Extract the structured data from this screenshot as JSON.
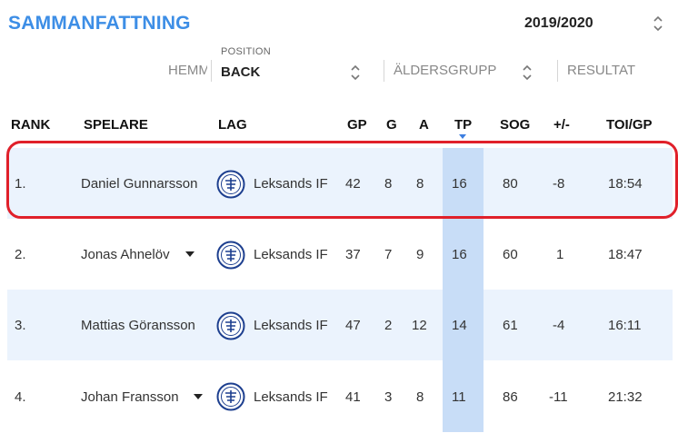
{
  "page": {
    "title": "SAMMANFATTNING",
    "season": "2019/2020"
  },
  "filters": {
    "hemma_label": "HEMM",
    "position_caption": "POSITION",
    "position_value": "BACK",
    "age_group_label": "ÄLDERSGRUPP",
    "result_label": "RESULTAT"
  },
  "table": {
    "columns": [
      "RANK",
      "SPELARE",
      "LAG",
      "GP",
      "G",
      "A",
      "TP",
      "SOG",
      "+/-",
      "TOI/GP"
    ],
    "sorted_column": "TP",
    "rows": [
      {
        "rank": "1.",
        "player": "Daniel Gunnarsson",
        "team": "Leksands IF",
        "gp": "42",
        "g": "8",
        "a": "8",
        "tp": "16",
        "sog": "80",
        "pm": "-8",
        "toi": "18:54",
        "has_dropdown": false
      },
      {
        "rank": "2.",
        "player": "Jonas Ahnelöv",
        "team": "Leksands IF",
        "gp": "37",
        "g": "7",
        "a": "9",
        "tp": "16",
        "sog": "60",
        "pm": "1",
        "toi": "18:47",
        "has_dropdown": true
      },
      {
        "rank": "3.",
        "player": "Mattias Göransson",
        "team": "Leksands IF",
        "gp": "47",
        "g": "2",
        "a": "12",
        "tp": "14",
        "sog": "61",
        "pm": "-4",
        "toi": "16:11",
        "has_dropdown": false
      },
      {
        "rank": "4.",
        "player": "Johan Fransson",
        "team": "Leksands IF",
        "gp": "41",
        "g": "3",
        "a": "8",
        "tp": "11",
        "sog": "86",
        "pm": "-11",
        "toi": "21:32",
        "has_dropdown": true
      }
    ]
  },
  "icons": {
    "team_logo": "leksands-if-logo-icon",
    "select_arrows": "chevron-up-down-icon",
    "row_dropdown": "caret-down-icon"
  },
  "colors": {
    "title": "#3d8ee6",
    "row_alt": "#ebf3fd",
    "tp_column": "#c8ddf7",
    "highlight": "#e0202a",
    "logo": "#1d3f8f"
  }
}
